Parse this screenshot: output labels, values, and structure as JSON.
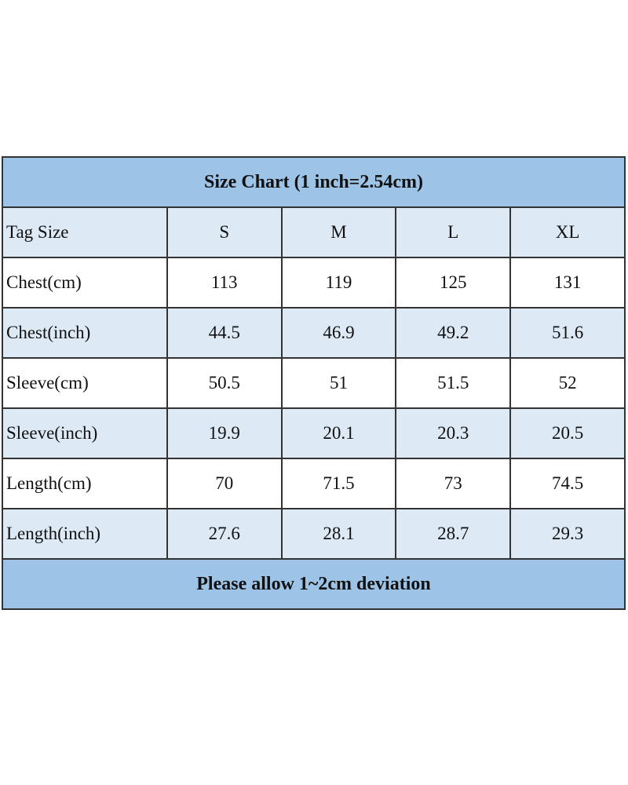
{
  "title": "Size Chart (1 inch=2.54cm)",
  "header": {
    "label": "Tag Size",
    "sizes": [
      "S",
      "M",
      "L",
      "XL"
    ]
  },
  "rows": [
    {
      "label": "Chest(cm)",
      "values": [
        "113",
        "119",
        "125",
        "131"
      ]
    },
    {
      "label": "Chest(inch)",
      "values": [
        "44.5",
        "46.9",
        "49.2",
        "51.6"
      ]
    },
    {
      "label": "Sleeve(cm)",
      "values": [
        "50.5",
        "51",
        "51.5",
        "52"
      ]
    },
    {
      "label": "Sleeve(inch)",
      "values": [
        "19.9",
        "20.1",
        "20.3",
        "20.5"
      ]
    },
    {
      "label": "Length(cm)",
      "values": [
        "70",
        "71.5",
        "73",
        "74.5"
      ]
    },
    {
      "label": "Length(inch)",
      "values": [
        "27.6",
        "28.1",
        "28.7",
        "29.3"
      ]
    }
  ],
  "footer": "Please allow 1~2cm deviation",
  "colors": {
    "band": "#9dc3e6",
    "alt_row": "#dde9f5",
    "border": "#333333"
  }
}
